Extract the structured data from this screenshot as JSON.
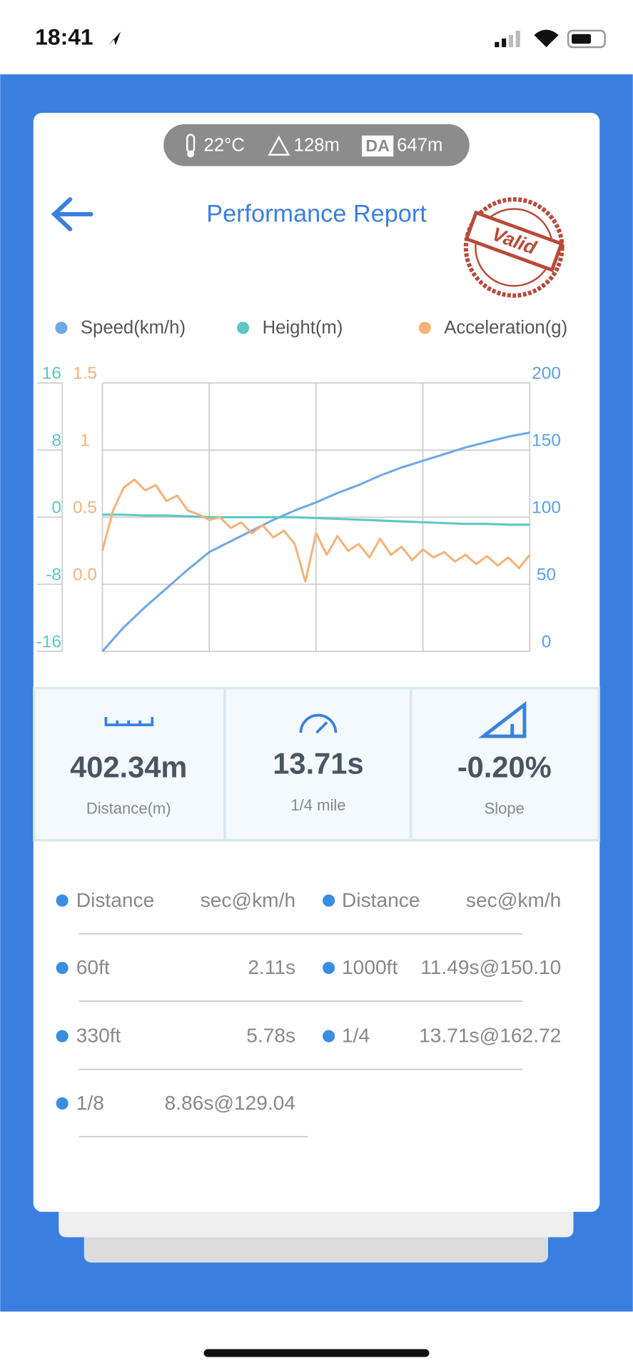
{
  "status_bar": {
    "time": "18:41"
  },
  "env": {
    "temperature": "22°C",
    "altitude": "128m",
    "da_badge": "DA",
    "density_altitude": "647m"
  },
  "header": {
    "title": "Performance Report",
    "stamp": "Valid"
  },
  "chart_data": {
    "type": "line",
    "series": [
      {
        "name": "Speed(km/h)",
        "color": "#6fa8e6",
        "axis": "y2",
        "values": [
          0,
          18,
          33,
          47,
          61,
          74,
          82,
          90,
          98,
          105,
          111,
          118,
          124,
          131,
          137,
          142,
          147,
          152,
          156,
          160,
          163
        ]
      },
      {
        "name": "Height(m)",
        "color": "#5cc7c4",
        "axis": "y",
        "values": [
          0.3,
          0.3,
          0.2,
          0.2,
          0.1,
          0,
          0,
          0,
          0,
          0,
          -0.1,
          -0.2,
          -0.3,
          -0.4,
          -0.5,
          -0.6,
          -0.7,
          -0.8,
          -0.8,
          -0.9,
          -0.9
        ]
      },
      {
        "name": "Acceleration(g)",
        "color": "#f5b27a",
        "axis": "y3",
        "values": [
          0.25,
          0.55,
          0.72,
          0.78,
          0.7,
          0.74,
          0.62,
          0.66,
          0.55,
          0.52,
          0.48,
          0.5,
          0.42,
          0.46,
          0.38,
          0.44,
          0.35,
          0.4,
          0.3,
          0.02,
          0.38,
          0.22,
          0.36,
          0.25,
          0.3,
          0.2,
          0.34,
          0.22,
          0.28,
          0.18,
          0.26,
          0.2,
          0.24,
          0.17,
          0.22,
          0.15,
          0.21,
          0.14,
          0.2,
          0.12,
          0.22
        ]
      }
    ],
    "ylim": [
      -16,
      16
    ],
    "yticks": [
      -16,
      -8,
      0,
      8,
      16
    ],
    "ycolor": "#5cc7c4",
    "y2lim": [
      0,
      200
    ],
    "y2ticks": [
      0,
      50,
      100,
      150,
      200
    ],
    "y2color": "#5aa0e6",
    "y3lim": [
      -0.5,
      1.5
    ],
    "y3ticks": [
      {
        "value": 0,
        "label": "0.0"
      },
      0.5,
      1,
      1.5
    ],
    "y3color": "#f5b27a",
    "grid": true
  },
  "stats": [
    {
      "value": "402.34m",
      "label": "Distance(m)"
    },
    {
      "value": "13.71s",
      "label": "1/4 mile"
    },
    {
      "value": "-0.20%",
      "label": "Slope"
    }
  ],
  "table": {
    "left": [
      [
        "Distance",
        "sec@km/h"
      ],
      [
        "60ft",
        "2.11s"
      ],
      [
        "330ft",
        "5.78s"
      ],
      [
        "1/8",
        "8.86s@129.04"
      ]
    ],
    "right": [
      [
        "Distance",
        "sec@km/h"
      ],
      [
        "1000ft",
        "11.49s@150.10"
      ],
      [
        "1/4",
        "13.71s@162.72"
      ]
    ]
  }
}
